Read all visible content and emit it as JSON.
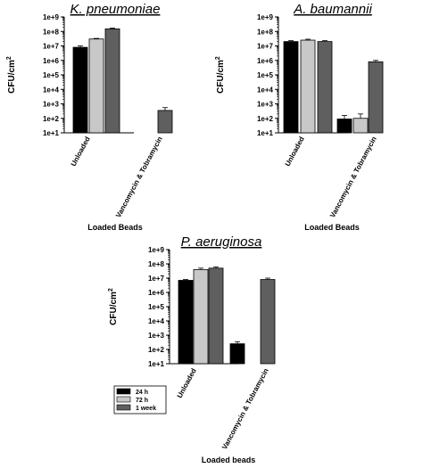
{
  "chart_data": [
    {
      "type": "bar",
      "title": "K. pneumoniae",
      "ylabel": "CFU/cm",
      "ylabel_sup": "2",
      "xlabel": "Loaded Beads",
      "yscale": "log",
      "ylim": [
        10,
        1000000000
      ],
      "yticks": [
        "1e+1",
        "1e+2",
        "1e+3",
        "1e+4",
        "1e+5",
        "1e+6",
        "1e+7",
        "1e+8",
        "1e+9"
      ],
      "categories": [
        "Unloaded",
        "Vancomycin & Tobramycin"
      ],
      "series": [
        {
          "name": "24 h",
          "values": [
            8000000,
            null
          ],
          "errors": [
            2000000,
            null
          ]
        },
        {
          "name": "72 h",
          "values": [
            30000000,
            null
          ],
          "errors": [
            3000000,
            null
          ]
        },
        {
          "name": "1 week",
          "values": [
            150000000,
            350
          ],
          "errors": [
            20000000,
            200
          ]
        }
      ]
    },
    {
      "type": "bar",
      "title": "A. baumannii",
      "ylabel": "CFU/cm",
      "ylabel_sup": "2",
      "xlabel": "Loaded Beads",
      "yscale": "log",
      "ylim": [
        10,
        1000000000
      ],
      "yticks": [
        "1e+1",
        "1e+2",
        "1e+3",
        "1e+4",
        "1e+5",
        "1e+6",
        "1e+7",
        "1e+8",
        "1e+9"
      ],
      "categories": [
        "Unloaded",
        "Vancomycin & Tobramycin"
      ],
      "series": [
        {
          "name": "24 h",
          "values": [
            20000000,
            90
          ],
          "errors": [
            3000000,
            70
          ]
        },
        {
          "name": "72 h",
          "values": [
            25000000,
            100
          ],
          "errors": [
            4000000,
            100
          ]
        },
        {
          "name": "1 week",
          "values": [
            20000000,
            800000
          ],
          "errors": [
            3000000,
            200000
          ]
        }
      ]
    },
    {
      "type": "bar",
      "title": "P. aeruginosa",
      "ylabel": "CFU/cm",
      "ylabel_sup": "2",
      "xlabel": "Loaded beads",
      "yscale": "log",
      "ylim": [
        10,
        1000000000
      ],
      "yticks": [
        "1e+1",
        "1e+2",
        "1e+3",
        "1e+4",
        "1e+5",
        "1e+6",
        "1e+7",
        "1e+8",
        "1e+9"
      ],
      "categories": [
        "Unloaded",
        "Vancomycin & Tobramycin"
      ],
      "legend": {
        "placement": "bottom-left",
        "entries": [
          "24 h",
          "72 h",
          "1 week"
        ]
      },
      "series": [
        {
          "name": "24 h",
          "values": [
            7000000,
            250
          ],
          "errors": [
            1000000,
            100
          ]
        },
        {
          "name": "72 h",
          "values": [
            40000000,
            null
          ],
          "errors": [
            10000000,
            null
          ]
        },
        {
          "name": "1 week",
          "values": [
            50000000,
            8000000
          ],
          "errors": [
            10000000,
            2000000
          ]
        }
      ]
    }
  ],
  "colors": {
    "24 h": "#000000",
    "72 h": "#c8c8c8",
    "1 week": "#5f5f5f"
  }
}
